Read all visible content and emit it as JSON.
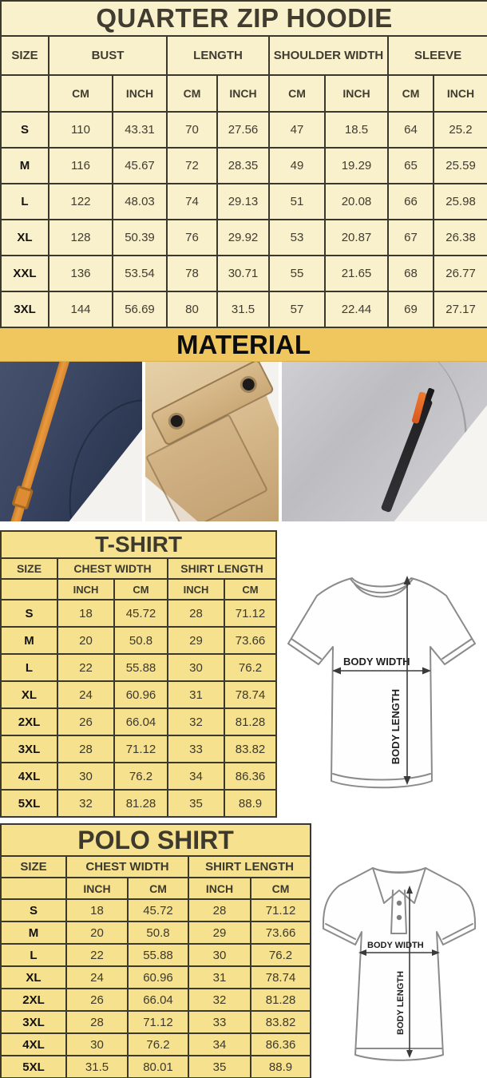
{
  "colors": {
    "header_gold": "#f0c75e",
    "hoodie_row_cream": "#f9f0cc",
    "shirt_row_yellow": "#f6e18f",
    "table_border": "#3b382e",
    "drawstring_orange": "#ea9a3d",
    "zip_pull_orange": "#ef7b2e"
  },
  "hoodie_table": {
    "title": "QUARTER ZIP HOODIE",
    "groups": [
      "SIZE",
      "BUST",
      "LENGTH",
      "SHOULDER WIDTH",
      "SLEEVE"
    ],
    "units": [
      "CM",
      "INCH",
      "CM",
      "INCH",
      "CM",
      "INCH",
      "CM",
      "INCH"
    ],
    "rows": [
      [
        "S",
        "110",
        "43.31",
        "70",
        "27.56",
        "47",
        "18.5",
        "64",
        "25.2"
      ],
      [
        "M",
        "116",
        "45.67",
        "72",
        "28.35",
        "49",
        "19.29",
        "65",
        "25.59"
      ],
      [
        "L",
        "122",
        "48.03",
        "74",
        "29.13",
        "51",
        "20.08",
        "66",
        "25.98"
      ],
      [
        "XL",
        "128",
        "50.39",
        "76",
        "29.92",
        "53",
        "20.87",
        "67",
        "26.38"
      ],
      [
        "XXL",
        "136",
        "53.54",
        "78",
        "30.71",
        "55",
        "21.65",
        "68",
        "26.77"
      ],
      [
        "3XL",
        "144",
        "56.69",
        "80",
        "31.5",
        "57",
        "22.44",
        "69",
        "27.17"
      ]
    ]
  },
  "material": {
    "title": "MATERIAL",
    "photos": [
      {
        "name": "navy-fleece-with-orange-drawstring"
      },
      {
        "name": "khaki-fabric-snap-flap-pocket"
      },
      {
        "name": "gray-fleece-zip-pocket-orange-pull"
      }
    ]
  },
  "tshirt_table": {
    "title": "T-SHIRT",
    "groups": [
      "SIZE",
      "CHEST WIDTH",
      "SHIRT LENGTH"
    ],
    "units": [
      "INCH",
      "CM",
      "INCH",
      "CM"
    ],
    "rows": [
      [
        "S",
        "18",
        "45.72",
        "28",
        "71.12"
      ],
      [
        "M",
        "20",
        "50.8",
        "29",
        "73.66"
      ],
      [
        "L",
        "22",
        "55.88",
        "30",
        "76.2"
      ],
      [
        "XL",
        "24",
        "60.96",
        "31",
        "78.74"
      ],
      [
        "2XL",
        "26",
        "66.04",
        "32",
        "81.28"
      ],
      [
        "3XL",
        "28",
        "71.12",
        "33",
        "83.82"
      ],
      [
        "4XL",
        "30",
        "76.2",
        "34",
        "86.36"
      ],
      [
        "5XL",
        "32",
        "81.28",
        "35",
        "88.9"
      ]
    ],
    "diagram": {
      "width_label": "BODY WIDTH",
      "length_label": "BODY LENGTH"
    }
  },
  "polo_table": {
    "title": "POLO SHIRT",
    "groups": [
      "SIZE",
      "CHEST WIDTH",
      "SHIRT LENGTH"
    ],
    "units": [
      "INCH",
      "CM",
      "INCH",
      "CM"
    ],
    "rows": [
      [
        "S",
        "18",
        "45.72",
        "28",
        "71.12"
      ],
      [
        "M",
        "20",
        "50.8",
        "29",
        "73.66"
      ],
      [
        "L",
        "22",
        "55.88",
        "30",
        "76.2"
      ],
      [
        "XL",
        "24",
        "60.96",
        "31",
        "78.74"
      ],
      [
        "2XL",
        "26",
        "66.04",
        "32",
        "81.28"
      ],
      [
        "3XL",
        "28",
        "71.12",
        "33",
        "83.82"
      ],
      [
        "4XL",
        "30",
        "76.2",
        "34",
        "86.36"
      ],
      [
        "5XL",
        "31.5",
        "80.01",
        "35",
        "88.9"
      ]
    ],
    "diagram": {
      "width_label": "BODY WIDTH",
      "length_label": "BODY LENGTH"
    }
  }
}
